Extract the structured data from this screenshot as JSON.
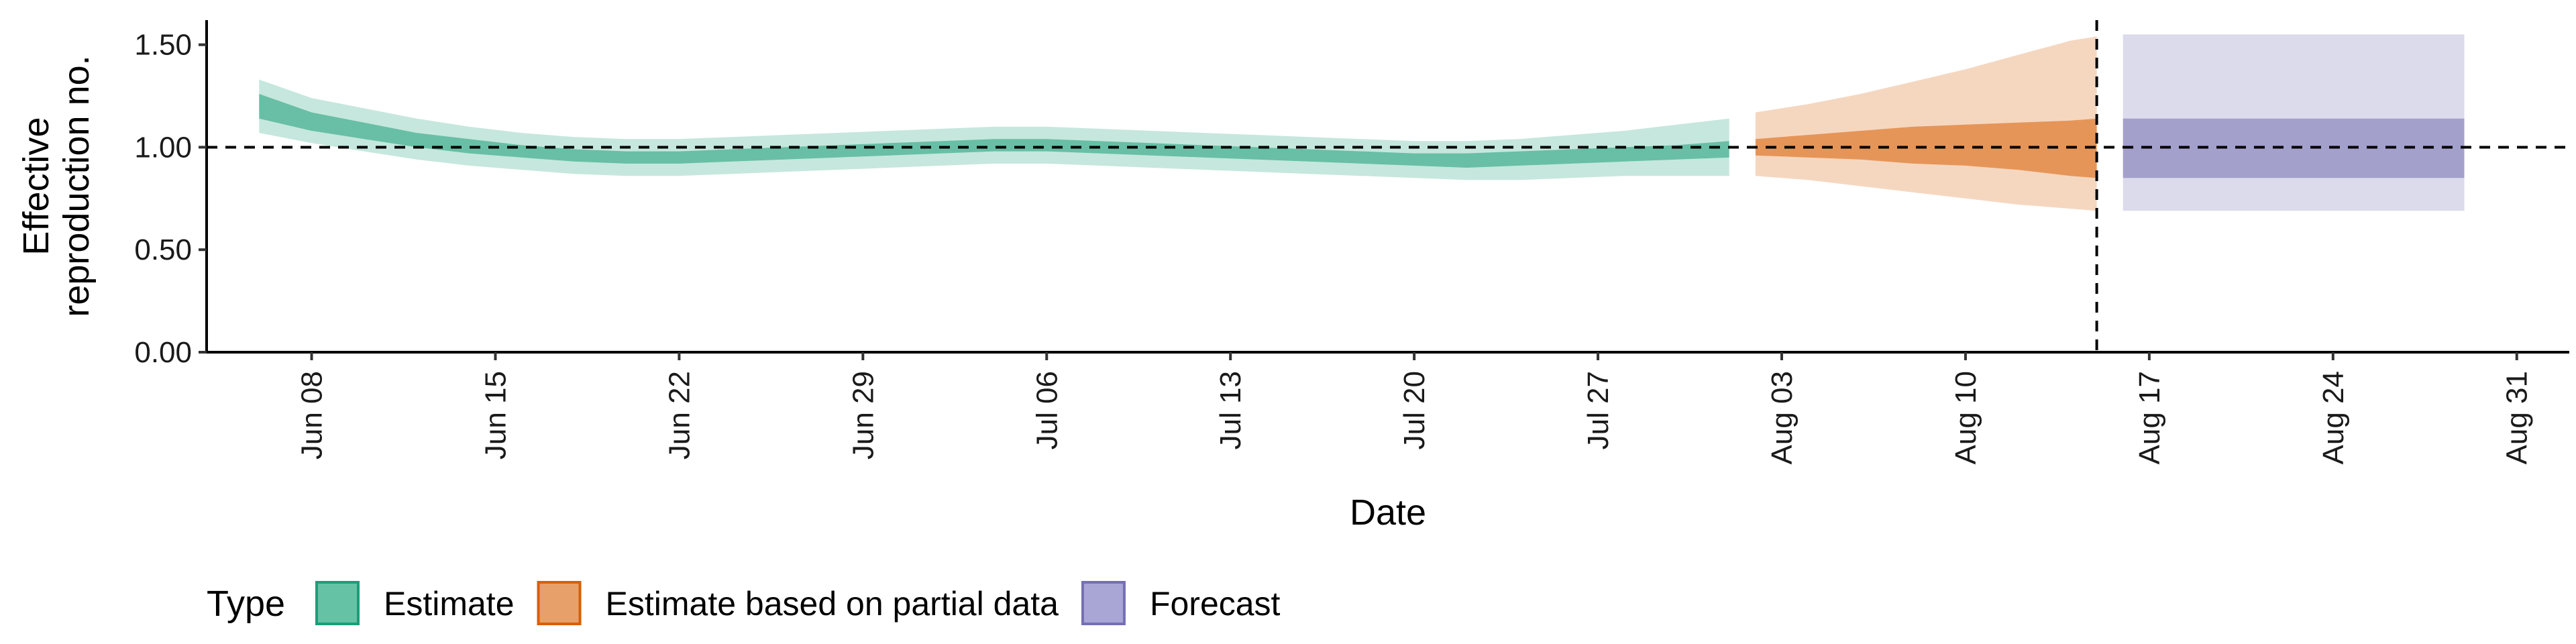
{
  "chart_data": {
    "type": "area",
    "xlabel": "Date",
    "ylabel_lines": [
      "Effective",
      "reproduction no."
    ],
    "ylim": [
      0,
      1.62
    ],
    "xlim": [
      "2020-06-04",
      "2020-09-02"
    ],
    "y_ticks": [
      {
        "value": 0.0,
        "label": "0.00"
      },
      {
        "value": 0.5,
        "label": "0.50"
      },
      {
        "value": 1.0,
        "label": "1.00"
      },
      {
        "value": 1.5,
        "label": "1.50"
      }
    ],
    "x_ticks": [
      {
        "date": "2020-06-08",
        "label": "Jun 08"
      },
      {
        "date": "2020-06-15",
        "label": "Jun 15"
      },
      {
        "date": "2020-06-22",
        "label": "Jun 22"
      },
      {
        "date": "2020-06-29",
        "label": "Jun 29"
      },
      {
        "date": "2020-07-06",
        "label": "Jul 06"
      },
      {
        "date": "2020-07-13",
        "label": "Jul 13"
      },
      {
        "date": "2020-07-20",
        "label": "Jul 20"
      },
      {
        "date": "2020-07-27",
        "label": "Jul 27"
      },
      {
        "date": "2020-08-03",
        "label": "Aug 03"
      },
      {
        "date": "2020-08-10",
        "label": "Aug 10"
      },
      {
        "date": "2020-08-17",
        "label": "Aug 17"
      },
      {
        "date": "2020-08-24",
        "label": "Aug 24"
      },
      {
        "date": "2020-08-31",
        "label": "Aug 31"
      }
    ],
    "reference_lines": {
      "horizontal_y": 1.0,
      "vertical_date": "2020-08-15",
      "style": "dashed"
    },
    "grid": false,
    "legend": {
      "position": "bottom-left",
      "title": "Type",
      "entries": [
        {
          "label": "Estimate",
          "fill": "#66c2a5",
          "border": "#1b9e77"
        },
        {
          "label": "Estimate based on partial data",
          "fill": "#e8a06a",
          "border": "#d95f02"
        },
        {
          "label": "Forecast",
          "fill": "#a9a6d6",
          "border": "#7570b3"
        }
      ]
    },
    "series": [
      {
        "name": "Estimate",
        "outer_color": "#1b9e77",
        "inner_color": "#1b9e77",
        "points": [
          {
            "date": "2020-06-06",
            "lo90": 1.07,
            "lo50": 1.14,
            "hi50": 1.26,
            "hi90": 1.33
          },
          {
            "date": "2020-06-08",
            "lo90": 1.02,
            "lo50": 1.08,
            "hi50": 1.17,
            "hi90": 1.24
          },
          {
            "date": "2020-06-10",
            "lo90": 0.98,
            "lo50": 1.04,
            "hi50": 1.12,
            "hi90": 1.19
          },
          {
            "date": "2020-06-12",
            "lo90": 0.94,
            "lo50": 1.0,
            "hi50": 1.07,
            "hi90": 1.14
          },
          {
            "date": "2020-06-14",
            "lo90": 0.91,
            "lo50": 0.97,
            "hi50": 1.04,
            "hi90": 1.1
          },
          {
            "date": "2020-06-16",
            "lo90": 0.89,
            "lo50": 0.95,
            "hi50": 1.01,
            "hi90": 1.07
          },
          {
            "date": "2020-06-18",
            "lo90": 0.87,
            "lo50": 0.93,
            "hi50": 0.99,
            "hi90": 1.05
          },
          {
            "date": "2020-06-20",
            "lo90": 0.86,
            "lo50": 0.92,
            "hi50": 0.98,
            "hi90": 1.04
          },
          {
            "date": "2020-06-22",
            "lo90": 0.86,
            "lo50": 0.92,
            "hi50": 0.98,
            "hi90": 1.04
          },
          {
            "date": "2020-06-24",
            "lo90": 0.87,
            "lo50": 0.93,
            "hi50": 0.99,
            "hi90": 1.05
          },
          {
            "date": "2020-06-26",
            "lo90": 0.88,
            "lo50": 0.94,
            "hi50": 1.0,
            "hi90": 1.06
          },
          {
            "date": "2020-06-28",
            "lo90": 0.89,
            "lo50": 0.95,
            "hi50": 1.01,
            "hi90": 1.07
          },
          {
            "date": "2020-06-30",
            "lo90": 0.9,
            "lo50": 0.96,
            "hi50": 1.02,
            "hi90": 1.08
          },
          {
            "date": "2020-07-02",
            "lo90": 0.91,
            "lo50": 0.97,
            "hi50": 1.03,
            "hi90": 1.09
          },
          {
            "date": "2020-07-04",
            "lo90": 0.92,
            "lo50": 0.98,
            "hi50": 1.04,
            "hi90": 1.1
          },
          {
            "date": "2020-07-06",
            "lo90": 0.92,
            "lo50": 0.98,
            "hi50": 1.04,
            "hi90": 1.1
          },
          {
            "date": "2020-07-08",
            "lo90": 0.91,
            "lo50": 0.97,
            "hi50": 1.03,
            "hi90": 1.09
          },
          {
            "date": "2020-07-10",
            "lo90": 0.9,
            "lo50": 0.96,
            "hi50": 1.02,
            "hi90": 1.08
          },
          {
            "date": "2020-07-12",
            "lo90": 0.89,
            "lo50": 0.95,
            "hi50": 1.01,
            "hi90": 1.07
          },
          {
            "date": "2020-07-14",
            "lo90": 0.88,
            "lo50": 0.94,
            "hi50": 1.0,
            "hi90": 1.06
          },
          {
            "date": "2020-07-16",
            "lo90": 0.87,
            "lo50": 0.93,
            "hi50": 0.99,
            "hi90": 1.05
          },
          {
            "date": "2020-07-18",
            "lo90": 0.86,
            "lo50": 0.92,
            "hi50": 0.98,
            "hi90": 1.04
          },
          {
            "date": "2020-07-20",
            "lo90": 0.85,
            "lo50": 0.91,
            "hi50": 0.97,
            "hi90": 1.03
          },
          {
            "date": "2020-07-22",
            "lo90": 0.84,
            "lo50": 0.9,
            "hi50": 0.97,
            "hi90": 1.03
          },
          {
            "date": "2020-07-24",
            "lo90": 0.84,
            "lo50": 0.91,
            "hi50": 0.98,
            "hi90": 1.04
          },
          {
            "date": "2020-07-26",
            "lo90": 0.85,
            "lo50": 0.92,
            "hi50": 0.99,
            "hi90": 1.06
          },
          {
            "date": "2020-07-28",
            "lo90": 0.86,
            "lo50": 0.93,
            "hi50": 1.0,
            "hi90": 1.08
          },
          {
            "date": "2020-07-30",
            "lo90": 0.86,
            "lo50": 0.94,
            "hi50": 1.01,
            "hi90": 1.11
          },
          {
            "date": "2020-08-01",
            "lo90": 0.86,
            "lo50": 0.95,
            "hi50": 1.03,
            "hi90": 1.14
          }
        ]
      },
      {
        "name": "Estimate based on partial data",
        "outer_color": "#d95f02",
        "inner_color": "#d95f02",
        "points": [
          {
            "date": "2020-08-02",
            "lo90": 0.86,
            "lo50": 0.96,
            "hi50": 1.04,
            "hi90": 1.17
          },
          {
            "date": "2020-08-04",
            "lo90": 0.84,
            "lo50": 0.95,
            "hi50": 1.06,
            "hi90": 1.21
          },
          {
            "date": "2020-08-06",
            "lo90": 0.81,
            "lo50": 0.94,
            "hi50": 1.08,
            "hi90": 1.26
          },
          {
            "date": "2020-08-08",
            "lo90": 0.78,
            "lo50": 0.92,
            "hi50": 1.1,
            "hi90": 1.32
          },
          {
            "date": "2020-08-10",
            "lo90": 0.75,
            "lo50": 0.91,
            "hi50": 1.11,
            "hi90": 1.38
          },
          {
            "date": "2020-08-12",
            "lo90": 0.72,
            "lo50": 0.89,
            "hi50": 1.12,
            "hi90": 1.45
          },
          {
            "date": "2020-08-14",
            "lo90": 0.7,
            "lo50": 0.86,
            "hi50": 1.13,
            "hi90": 1.52
          },
          {
            "date": "2020-08-15",
            "lo90": 0.69,
            "lo50": 0.85,
            "hi50": 1.14,
            "hi90": 1.54
          }
        ]
      },
      {
        "name": "Forecast",
        "outer_color": "#7570b3",
        "inner_color": "#7570b3",
        "points": [
          {
            "date": "2020-08-16",
            "lo90": 0.69,
            "lo50": 0.85,
            "hi50": 1.14,
            "hi90": 1.55
          },
          {
            "date": "2020-08-29",
            "lo90": 0.69,
            "lo50": 0.85,
            "hi50": 1.14,
            "hi90": 1.55
          }
        ]
      }
    ]
  }
}
